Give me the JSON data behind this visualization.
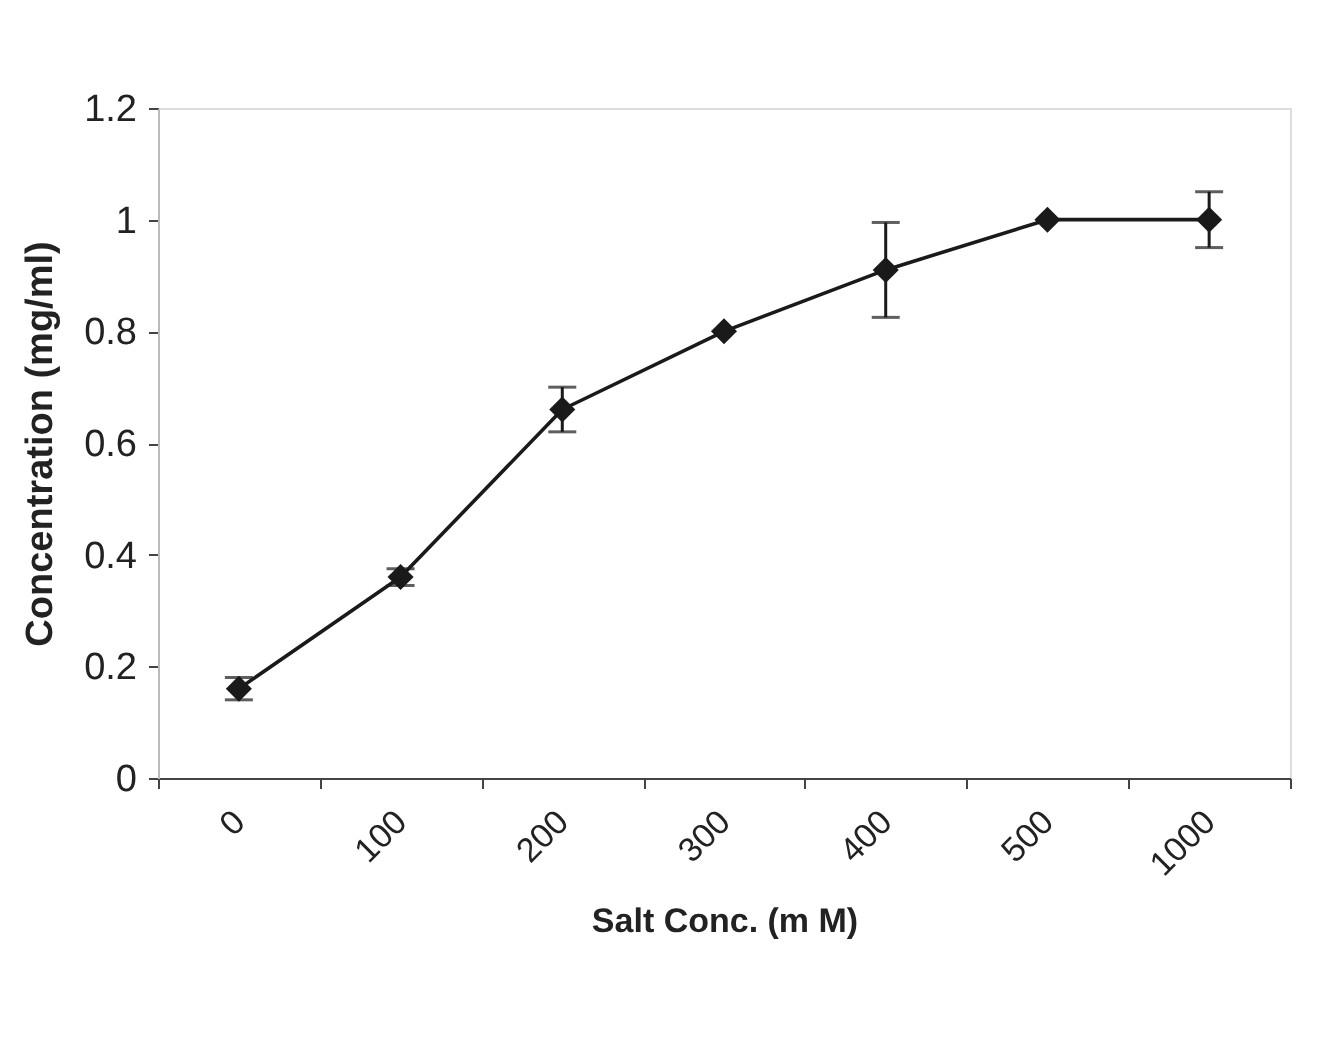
{
  "chart_data": {
    "type": "line",
    "xlabel": "Salt Conc. (m M)",
    "ylabel": "Concentration (mg/ml)",
    "categories": [
      "0",
      "100",
      "200",
      "300",
      "400",
      "500",
      "1000"
    ],
    "series": [
      {
        "color": "#1a1a1a",
        "values": [
          0.16,
          0.36,
          0.66,
          0.8,
          0.91,
          1.0,
          1.0
        ],
        "errors": [
          0.02,
          0.015,
          0.04,
          null,
          0.085,
          null,
          0.05
        ]
      }
    ],
    "ylim": [
      0,
      1.2
    ],
    "yticks": [
      0,
      0.2,
      0.4,
      0.6,
      0.8,
      1,
      1.2
    ],
    "grid": false,
    "marker": "diamond",
    "line_style": "solid"
  }
}
